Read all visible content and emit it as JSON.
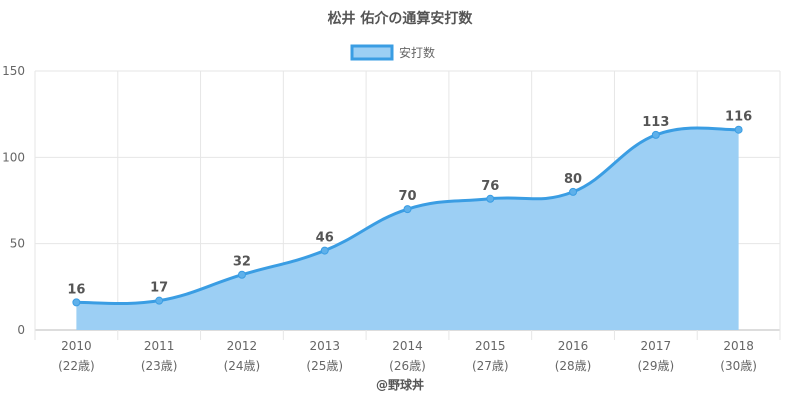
{
  "chart_data": {
    "type": "area",
    "title": "松井 佑介の通算安打数",
    "categories": [
      "2010",
      "2011",
      "2012",
      "2013",
      "2014",
      "2015",
      "2016",
      "2017",
      "2018"
    ],
    "sublabels": [
      "(22歳)",
      "(23歳)",
      "(24歳)",
      "(25歳)",
      "(26歳)",
      "(27歳)",
      "(28歳)",
      "(29歳)",
      "(30歳)"
    ],
    "series": [
      {
        "name": "安打数",
        "values": [
          16,
          17,
          32,
          46,
          70,
          76,
          80,
          113,
          116
        ]
      }
    ],
    "ylim": [
      0,
      150
    ],
    "yticks": [
      0,
      50,
      100,
      150
    ],
    "grid": true,
    "legend_position": "top-center",
    "colors": {
      "line": "#3a9de3",
      "fill": "#9ccff4",
      "point": "#5eb0ea"
    }
  },
  "credit": "@野球丼"
}
